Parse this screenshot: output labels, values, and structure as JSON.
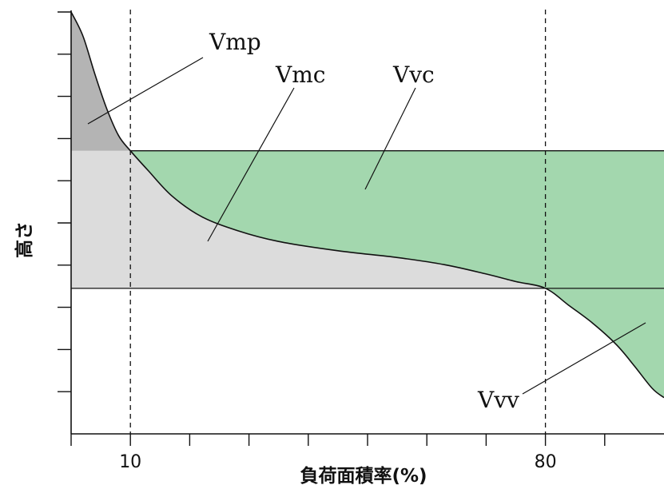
{
  "chart_data": {
    "type": "area",
    "xlabel": "負荷面積率(%)",
    "ylabel": "高さ",
    "xlim": [
      0,
      100
    ],
    "x_ticks": [
      0,
      10,
      20,
      30,
      40,
      50,
      60,
      70,
      80,
      90
    ],
    "x_tick_labels": [
      {
        "x": 10,
        "label": "10"
      },
      {
        "x": 80,
        "label": "80"
      }
    ],
    "y_tick_count": 10,
    "thresholds": {
      "x_peak_core": 10,
      "x_core_valley": 80,
      "level_upper": 0.671,
      "level_lower": 0.345
    },
    "material_ratio_curve": {
      "x": [
        0,
        2,
        4,
        6,
        8,
        10,
        13,
        17,
        22,
        28,
        35,
        45,
        55,
        63,
        70,
        75,
        80,
        84,
        88,
        92,
        95,
        98,
        100
      ],
      "y": [
        1.0,
        0.943,
        0.853,
        0.771,
        0.707,
        0.671,
        0.624,
        0.564,
        0.515,
        0.482,
        0.456,
        0.434,
        0.418,
        0.401,
        0.379,
        0.361,
        0.345,
        0.304,
        0.262,
        0.211,
        0.161,
        0.108,
        0.086
      ]
    },
    "regions": [
      {
        "name": "Vmp",
        "color": "#b4b4b4"
      },
      {
        "name": "Vmc",
        "color": "#dcdcdc"
      },
      {
        "name": "Vvc",
        "color": "#a3d7ae"
      },
      {
        "name": "Vvv",
        "color": "#a3d7ae"
      }
    ],
    "labels": {
      "vmp": "Vmp",
      "vmc": "Vmc",
      "vvc": "Vvc",
      "vvv": "Vvv"
    },
    "grid": false,
    "legend": "none"
  }
}
